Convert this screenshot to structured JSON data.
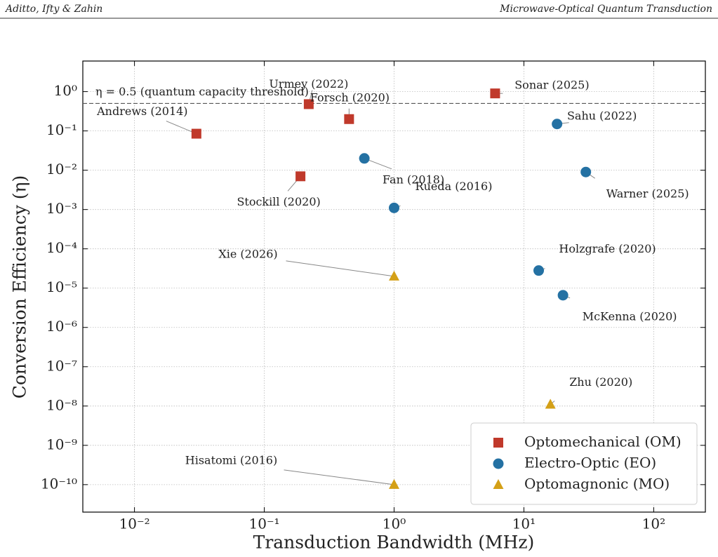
{
  "header": {
    "authors": "Aditto, Ifty & Zahin",
    "title": "Microwave-Optical Quantum Transduction"
  },
  "chart_data": {
    "type": "scatter",
    "x_label": "Transduction Bandwidth (MHz)",
    "y_label": "Conversion Efficiency (η)",
    "x_log": true,
    "y_log": true,
    "grid": true,
    "legend": "lower right",
    "xlim": [
      0.004,
      250
    ],
    "ylim": [
      2e-11,
      6
    ],
    "xticks": [
      {
        "value": 0.01,
        "label": "10⁻²"
      },
      {
        "value": 0.1,
        "label": "10⁻¹"
      },
      {
        "value": 1,
        "label": "10⁰"
      },
      {
        "value": 10,
        "label": "10¹"
      },
      {
        "value": 100,
        "label": "10²"
      }
    ],
    "yticks": [
      {
        "value": 1e-10,
        "label": "10⁻¹⁰"
      },
      {
        "value": 1e-09,
        "label": "10⁻⁹"
      },
      {
        "value": 1e-08,
        "label": "10⁻⁸"
      },
      {
        "value": 1e-07,
        "label": "10⁻⁷"
      },
      {
        "value": 1e-06,
        "label": "10⁻⁶"
      },
      {
        "value": 1e-05,
        "label": "10⁻⁵"
      },
      {
        "value": 0.0001,
        "label": "10⁻⁴"
      },
      {
        "value": 0.001,
        "label": "10⁻³"
      },
      {
        "value": 0.01,
        "label": "10⁻²"
      },
      {
        "value": 0.1,
        "label": "10⁻¹"
      },
      {
        "value": 1,
        "label": "10⁰"
      }
    ],
    "threshold": {
      "value": 0.5,
      "label": "η = 0.5 (quantum capacity threshold)"
    },
    "series": [
      {
        "name": "Optomechanical (OM)",
        "color": "#c0392b",
        "marker": "square",
        "labels": [
          "Andrews (2014)",
          "Stockill (2020)",
          "Urmey (2022)",
          "Forsch (2020)",
          "Sonar (2025)"
        ],
        "x": [
          0.03,
          0.19,
          0.22,
          0.45,
          6
        ],
        "values": [
          0.085,
          0.007,
          0.48,
          0.2,
          0.9
        ]
      },
      {
        "name": "Electro-Optic (EO)",
        "color": "#2471a3",
        "marker": "circle",
        "labels": [
          "Fan (2018)",
          "Rueda (2016)",
          "Sahu (2022)",
          "Warner (2025)",
          "Holzgrafe (2020)",
          "McKenna (2020)"
        ],
        "x": [
          0.59,
          1,
          18,
          30,
          13,
          20
        ],
        "values": [
          0.02,
          0.0011,
          0.15,
          0.009,
          2.8e-05,
          6.6e-06
        ]
      },
      {
        "name": "Optomagnonic (MO)",
        "color": "#d4a017",
        "marker": "triangle",
        "labels": [
          "Xie (2026)",
          "Zhu (2020)",
          "Hisatomi (2016)"
        ],
        "x": [
          1,
          16,
          1
        ],
        "values": [
          2e-05,
          1.1e-08,
          1e-10
        ]
      }
    ]
  }
}
